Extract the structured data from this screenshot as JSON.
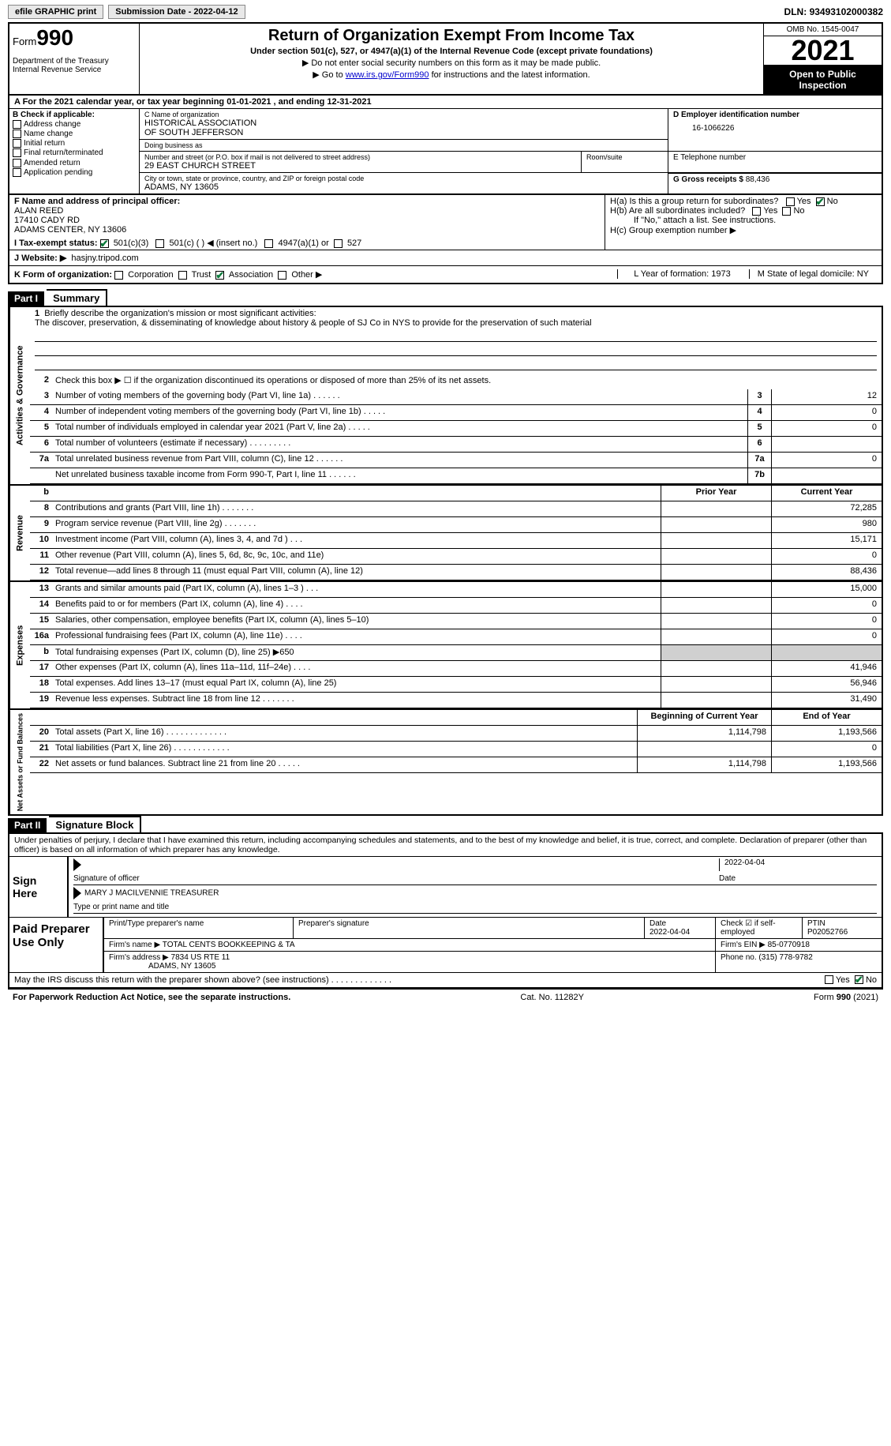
{
  "topbar": {
    "efile": "efile GRAPHIC print",
    "submission": "Submission Date - 2022-04-12",
    "dln_label": "DLN:",
    "dln": "93493102000382"
  },
  "header": {
    "form_word": "Form",
    "form_num": "990",
    "title": "Return of Organization Exempt From Income Tax",
    "subtitle": "Under section 501(c), 527, or 4947(a)(1) of the Internal Revenue Code (except private foundations)",
    "note1": "▶ Do not enter social security numbers on this form as it may be made public.",
    "note2_pre": "▶ Go to ",
    "note2_link": "www.irs.gov/Form990",
    "note2_post": " for instructions and the latest information.",
    "dept": "Department of the Treasury\nInternal Revenue Service",
    "omb": "OMB No. 1545-0047",
    "year": "2021",
    "open": "Open to Public Inspection"
  },
  "rowA": {
    "text": "A For the 2021 calendar year, or tax year beginning 01-01-2021    , and ending 12-31-2021"
  },
  "B": {
    "label": "B Check if applicable:",
    "addr": "Address change",
    "name": "Name change",
    "init": "Initial return",
    "final": "Final return/terminated",
    "amend": "Amended return",
    "app": "Application pending"
  },
  "C": {
    "name_lbl": "C Name of organization",
    "name": "HISTORICAL ASSOCIATION\nOF SOUTH JEFFERSON",
    "dba_lbl": "Doing business as",
    "dba": "",
    "street_lbl": "Number and street (or P.O. box if mail is not delivered to street address)",
    "street": "29 EAST CHURCH STREET",
    "room_lbl": "Room/suite",
    "room": "",
    "city_lbl": "City or town, state or province, country, and ZIP or foreign postal code",
    "city": "ADAMS, NY  13605"
  },
  "D": {
    "lbl": "D Employer identification number",
    "val": "16-1066226"
  },
  "E": {
    "lbl": "E Telephone number",
    "val": ""
  },
  "G": {
    "lbl": "G Gross receipts $",
    "val": "88,436"
  },
  "F": {
    "lbl": "F  Name and address of principal officer:",
    "name": "ALAN REED",
    "addr1": "17410 CADY RD",
    "addr2": "ADAMS CENTER, NY  13606"
  },
  "H": {
    "a": "H(a)  Is this a group return for subordinates?",
    "b": "H(b)  Are all subordinates included?",
    "b_note": "If \"No,\" attach a list. See instructions.",
    "c": "H(c)  Group exemption number ▶",
    "yes": "Yes",
    "no": "No"
  },
  "I": {
    "lbl": "I  Tax-exempt status:",
    "o1": "501(c)(3)",
    "o2": "501(c) (  ) ◀ (insert no.)",
    "o3": "4947(a)(1) or",
    "o4": "527"
  },
  "J": {
    "lbl": "J  Website: ▶",
    "val": "hasjny.tripod.com"
  },
  "K": {
    "lbl": "K Form of organization:",
    "c": "Corporation",
    "t": "Trust",
    "a": "Association",
    "o": "Other ▶",
    "L": "L Year of formation: 1973",
    "M": "M State of legal domicile: NY"
  },
  "partI": {
    "hdr": "Part I",
    "title": "Summary"
  },
  "summary": {
    "sidebar1": "Activities & Governance",
    "sidebar2": "Revenue",
    "sidebar3": "Expenses",
    "sidebar4": "Net Assets or Fund Balances",
    "l1": "Briefly describe the organization's mission or most significant activities:",
    "mission": "The discover, preservation, & disseminating of knowledge about history & people of SJ Co in NYS to provide for the preservation of such material",
    "l2": "Check this box ▶ ☐ if the organization discontinued its operations or disposed of more than 25% of its net assets.",
    "prior": "Prior Year",
    "current": "Current Year",
    "beg": "Beginning of Current Year",
    "end": "End of Year",
    "rows_ag": [
      {
        "n": "3",
        "t": "Number of voting members of the governing body (Part VI, line 1a)  .   .   .   .   .   .",
        "rn": "3",
        "v": "12"
      },
      {
        "n": "4",
        "t": "Number of independent voting members of the governing body (Part VI, line 1b)  .   .   .   .   .",
        "rn": "4",
        "v": "0"
      },
      {
        "n": "5",
        "t": "Total number of individuals employed in calendar year 2021 (Part V, line 2a)  .   .   .   .   .",
        "rn": "5",
        "v": "0"
      },
      {
        "n": "6",
        "t": "Total number of volunteers (estimate if necessary)    .    .    .    .    .    .    .    .    .",
        "rn": "6",
        "v": ""
      },
      {
        "n": "7a",
        "t": "Total unrelated business revenue from Part VIII, column (C), line 12  .    .    .    .    .    .",
        "rn": "7a",
        "v": "0"
      },
      {
        "n": "",
        "t": "Net unrelated business taxable income from Form 990-T, Part I, line 11  .   .   .   .   .   .",
        "rn": "7b",
        "v": ""
      }
    ],
    "rows_rev": [
      {
        "n": "8",
        "t": "Contributions and grants (Part VIII, line 1h)    .    .    .    .    .    .    .",
        "p": "",
        "c": "72,285"
      },
      {
        "n": "9",
        "t": "Program service revenue (Part VIII, line 2g)    .    .    .    .    .    .    .",
        "p": "",
        "c": "980"
      },
      {
        "n": "10",
        "t": "Investment income (Part VIII, column (A), lines 3, 4, and 7d )   .   .   .",
        "p": "",
        "c": "15,171"
      },
      {
        "n": "11",
        "t": "Other revenue (Part VIII, column (A), lines 5, 6d, 8c, 9c, 10c, and 11e)",
        "p": "",
        "c": "0"
      },
      {
        "n": "12",
        "t": "Total revenue—add lines 8 through 11 (must equal Part VIII, column (A), line 12)",
        "p": "",
        "c": "88,436"
      }
    ],
    "rows_exp": [
      {
        "n": "13",
        "t": "Grants and similar amounts paid (Part IX, column (A), lines 1–3 )   .   .   .",
        "p": "",
        "c": "15,000"
      },
      {
        "n": "14",
        "t": "Benefits paid to or for members (Part IX, column (A), line 4)   .   .   .   .",
        "p": "",
        "c": "0"
      },
      {
        "n": "15",
        "t": "Salaries, other compensation, employee benefits (Part IX, column (A), lines 5–10)",
        "p": "",
        "c": "0"
      },
      {
        "n": "16a",
        "t": "Professional fundraising fees (Part IX, column (A), line 11e)   .   .   .   .",
        "p": "",
        "c": "0"
      },
      {
        "n": "b",
        "t": "Total fundraising expenses (Part IX, column (D), line 25) ▶650",
        "p": "grey",
        "c": "grey"
      },
      {
        "n": "17",
        "t": "Other expenses (Part IX, column (A), lines 11a–11d, 11f–24e)   .   .   .   .",
        "p": "",
        "c": "41,946"
      },
      {
        "n": "18",
        "t": "Total expenses. Add lines 13–17 (must equal Part IX, column (A), line 25)",
        "p": "",
        "c": "56,946"
      },
      {
        "n": "19",
        "t": "Revenue less expenses. Subtract line 18 from line 12  .   .   .   .   .   .   .",
        "p": "",
        "c": "31,490"
      }
    ],
    "rows_net": [
      {
        "n": "20",
        "t": "Total assets (Part X, line 16)  .   .   .   .   .   .   .   .   .   .   .   .   .",
        "p": "1,114,798",
        "c": "1,193,566"
      },
      {
        "n": "21",
        "t": "Total liabilities (Part X, line 26)  .   .   .   .   .   .   .   .   .   .   .   .",
        "p": "",
        "c": "0"
      },
      {
        "n": "22",
        "t": "Net assets or fund balances. Subtract line 21 from line 20  .   .   .   .   .",
        "p": "1,114,798",
        "c": "1,193,566"
      }
    ]
  },
  "partII": {
    "hdr": "Part II",
    "title": "Signature Block"
  },
  "sig": {
    "penalty": "Under penalties of perjury, I declare that I have examined this return, including accompanying schedules and statements, and to the best of my knowledge and belief, it is true, correct, and complete. Declaration of preparer (other than officer) is based on all information of which preparer has any knowledge.",
    "sign_here": "Sign Here",
    "date": "2022-04-04",
    "sig_of": "Signature of officer",
    "date_lbl": "Date",
    "name": "MARY J MACILVENNIE  TREASURER",
    "name_lbl": "Type or print name and title"
  },
  "paid": {
    "lbl": "Paid Preparer Use Only",
    "h_name": "Print/Type preparer's name",
    "h_sig": "Preparer's signature",
    "h_date": "Date",
    "date": "2022-04-04",
    "h_chk": "Check ☑ if self-employed",
    "h_ptin": "PTIN",
    "ptin": "P02052766",
    "firm_lbl": "Firm's name     ▶",
    "firm": "TOTAL CENTS BOOKKEEPING & TA",
    "ein_lbl": "Firm's EIN ▶",
    "ein": "85-0770918",
    "addr_lbl": "Firm's address ▶",
    "addr1": "7834 US RTE 11",
    "addr2": "ADAMS, NY  13605",
    "phone_lbl": "Phone no.",
    "phone": "(315) 778-9782",
    "discuss": "May the IRS discuss this return with the preparer shown above? (see instructions)   .   .   .   .   .   .   .   .   .   .   .   .   .",
    "yes": "Yes",
    "no": "No"
  },
  "footer": {
    "left": "For Paperwork Reduction Act Notice, see the separate instructions.",
    "mid": "Cat. No. 11282Y",
    "right": "Form 990 (2021)"
  }
}
